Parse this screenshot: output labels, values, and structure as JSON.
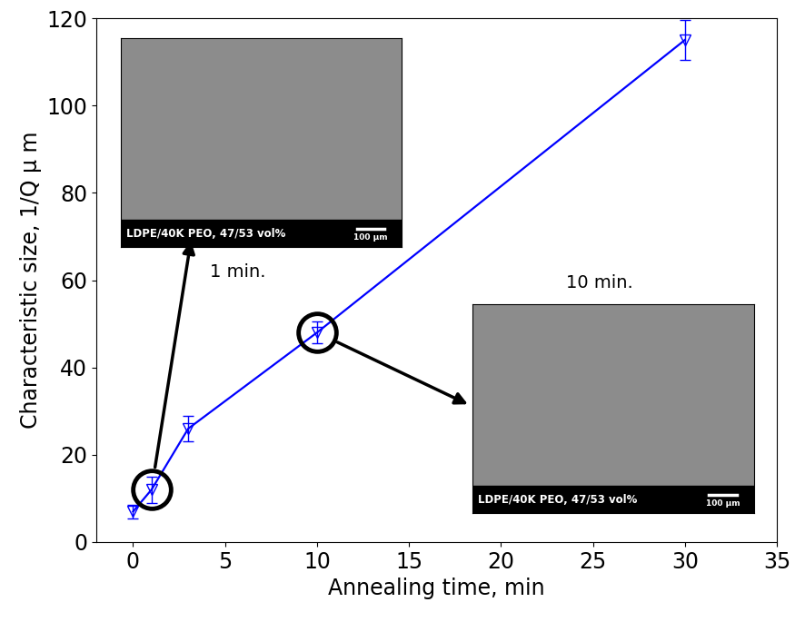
{
  "chart_data": {
    "type": "line",
    "x_label": "Annealing time, min",
    "y_label": "Characteristic size, 1/Q μ m",
    "x": [
      0,
      1,
      3,
      10,
      30
    ],
    "series": [
      {
        "name": "LDPE/40K PEO, 47/53 vol%",
        "color": "#0000ff",
        "marker": "triangle_down",
        "line_style": "solid",
        "values": [
          7,
          12,
          26,
          48,
          115
        ],
        "errors": [
          1.5,
          3,
          3,
          2.5,
          4.5
        ]
      }
    ],
    "xlim": [
      -2,
      35
    ],
    "xticks": [
      0,
      5,
      10,
      15,
      20,
      25,
      30,
      35
    ],
    "ylim": [
      0,
      120
    ],
    "yticks": [
      0,
      20,
      40,
      60,
      80,
      100,
      120
    ],
    "grid": false,
    "annotations": [
      {
        "text": "1 min.",
        "x": 1,
        "image_caption": "LDPE/40K PEO, 47/53 vol%",
        "scale_bar": "100 μm"
      },
      {
        "text": "10 min.",
        "x": 10,
        "image_caption": "LDPE/40K PEO, 47/53 vol%",
        "scale_bar": "100 μm"
      }
    ]
  }
}
